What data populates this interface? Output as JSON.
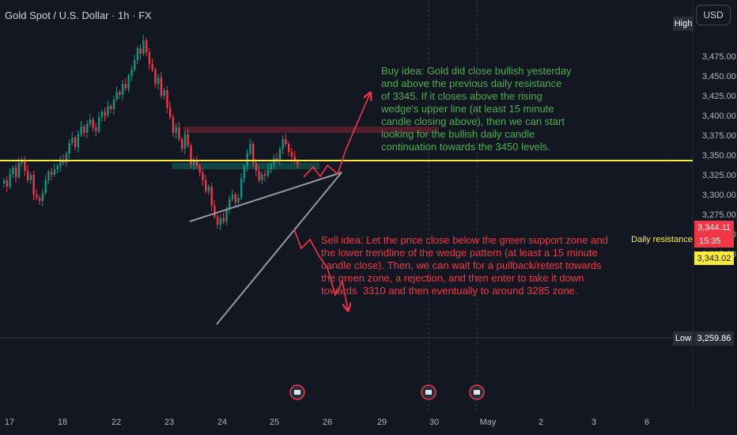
{
  "title": "Gold Spot / U.S. Dollar · 1h · FX",
  "currency_button": "USD",
  "high_tag": "High",
  "low_tag": "Low",
  "low_value": "3,259.86",
  "daily_resistance_label": "Daily resistance",
  "last_price": "3,344.11",
  "countdown": "15:35",
  "resistance_price": "3,343.02",
  "buy_note": "Buy idea: Gold did close bullish yesterday\nand above the previous daily resistance\nof 3345. If it closes above the rising\nwedge's upper line (at least 15 minute\ncandle closing above), then we can start\nlooking for the bullish daily candle\ncontinuation towards the 3450 levels.",
  "sell_note": "Sell idea: Let the price close below the green support zone and\nthe lower trendline of the wedge pattern (at least a 15 minute\ncandle close). Then, we can wait for a pullback/retest towards\nthe green zone, a rejection, and then enter to take it down\ntowards  3310 and then eventually to around 3285 zone.",
  "colors": {
    "background": "#131722",
    "up": "#089981",
    "down": "#f23645",
    "resistance_line": "#ffeb3b",
    "buy_text": "#4caf50",
    "sell_text": "#f23645",
    "axis_text": "#b2b5be"
  },
  "chart_data": {
    "type": "candlestick",
    "title": "Gold Spot / U.S. Dollar · 1h · FX",
    "x_ticks": [
      "17",
      "18",
      "22",
      "23",
      "24",
      "25",
      "26",
      "29",
      "30",
      "May",
      "2",
      "3",
      "6"
    ],
    "y_ticks": [
      3225,
      3250,
      3275,
      3300,
      3325,
      3350,
      3375,
      3400,
      3425,
      3450,
      3475
    ],
    "y_tick_labels": [
      "3,225.00",
      "3,250.00",
      "3,275.00",
      "3,300.00",
      "3,325.00",
      "3,350.00",
      "3,375.00",
      "3,400.00",
      "3,425.00",
      "3,450.00",
      "3,475.00"
    ],
    "ylim": [
      3213,
      3497
    ],
    "high": 3500,
    "low": 3259.86,
    "last_price": 3344.11,
    "resistance": 3343.02,
    "resistance_zone": [
      3378,
      3386
    ],
    "support_zone": [
      3332,
      3340
    ],
    "daily_close_path": [
      3318,
      3310,
      3326,
      3334,
      3322,
      3340,
      3344,
      3330,
      3318,
      3325,
      3300,
      3296,
      3292,
      3302,
      3318,
      3329,
      3325,
      3332,
      3336,
      3344,
      3340,
      3352,
      3365,
      3372,
      3360,
      3376,
      3386,
      3378,
      3389,
      3395,
      3385,
      3380,
      3398,
      3405,
      3400,
      3412,
      3408,
      3420,
      3430,
      3426,
      3440,
      3434,
      3450,
      3458,
      3470,
      3485,
      3478,
      3495,
      3480,
      3465,
      3458,
      3440,
      3448,
      3425,
      3432,
      3410,
      3398,
      3378,
      3385,
      3370,
      3358,
      3376,
      3362,
      3338,
      3342,
      3336,
      3328,
      3318,
      3304,
      3310,
      3286,
      3272,
      3262,
      3270,
      3266,
      3282,
      3294,
      3300,
      3290,
      3296,
      3320,
      3336,
      3352,
      3364,
      3340,
      3330,
      3318,
      3326,
      3324,
      3332,
      3338,
      3346,
      3342,
      3358,
      3370,
      3364,
      3354,
      3348,
      3342,
      3338
    ]
  }
}
